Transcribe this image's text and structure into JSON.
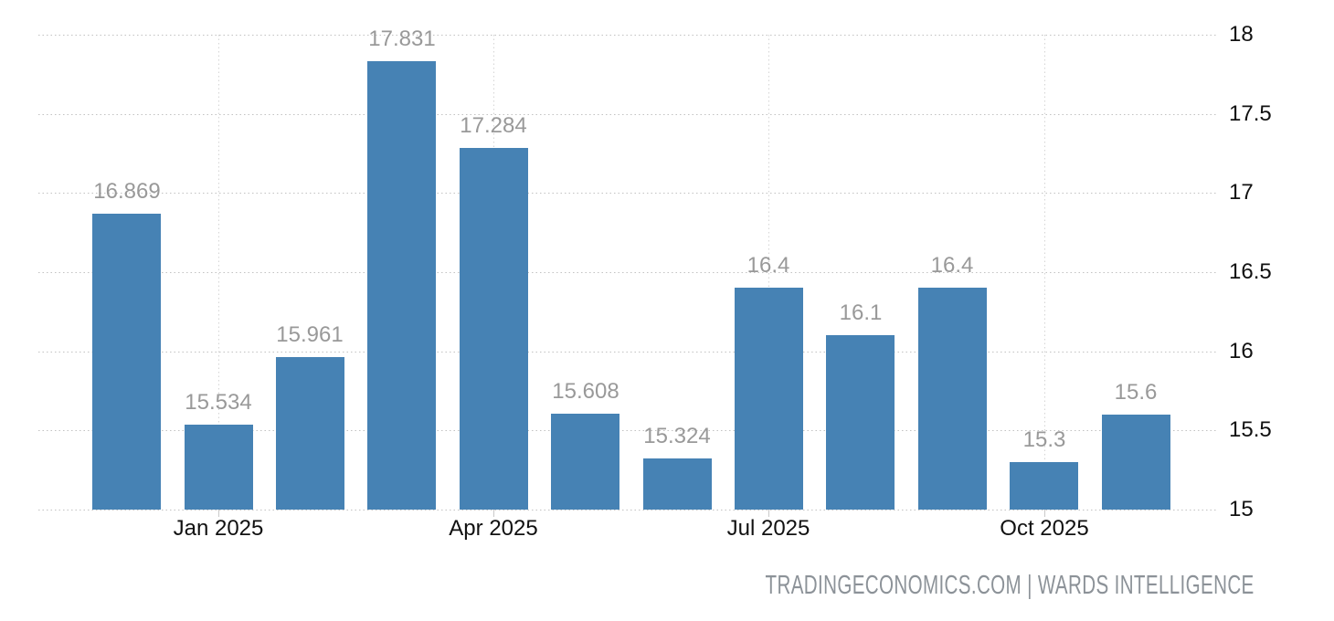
{
  "watermark": {
    "text": "TRADINGECONOMICS.COM | WARDS INTELLIGENCE"
  },
  "chart_data": {
    "type": "bar",
    "title": "",
    "xlabel": "",
    "ylabel": "",
    "values": [
      16.869,
      15.534,
      15.961,
      17.831,
      17.284,
      15.608,
      15.324,
      16.4,
      16.1,
      16.4,
      15.3,
      15.6
    ],
    "data_labels": [
      "16.869",
      "15.534",
      "15.961",
      "17.831",
      "17.284",
      "15.608",
      "15.324",
      "16.4",
      "16.1",
      "16.4",
      "15.3",
      "15.6"
    ],
    "x_axis": {
      "tick_labels": [
        "Jan 2025",
        "Apr 2025",
        "Jul 2025",
        "Oct 2025"
      ],
      "tick_bar_indices": [
        1,
        4,
        7,
        10
      ]
    },
    "y_axis": {
      "side": "right",
      "min": 15,
      "max": 18,
      "tick_step": 0.5,
      "tick_labels": [
        "15",
        "15.5",
        "16",
        "16.5",
        "17",
        "17.5",
        "18"
      ]
    },
    "grid": "dotted",
    "legend_position": "none",
    "colors": {
      "bar": "#4682B4",
      "data_label": "#999999",
      "axis_label": "#111111",
      "watermark": "#8C9298"
    }
  }
}
